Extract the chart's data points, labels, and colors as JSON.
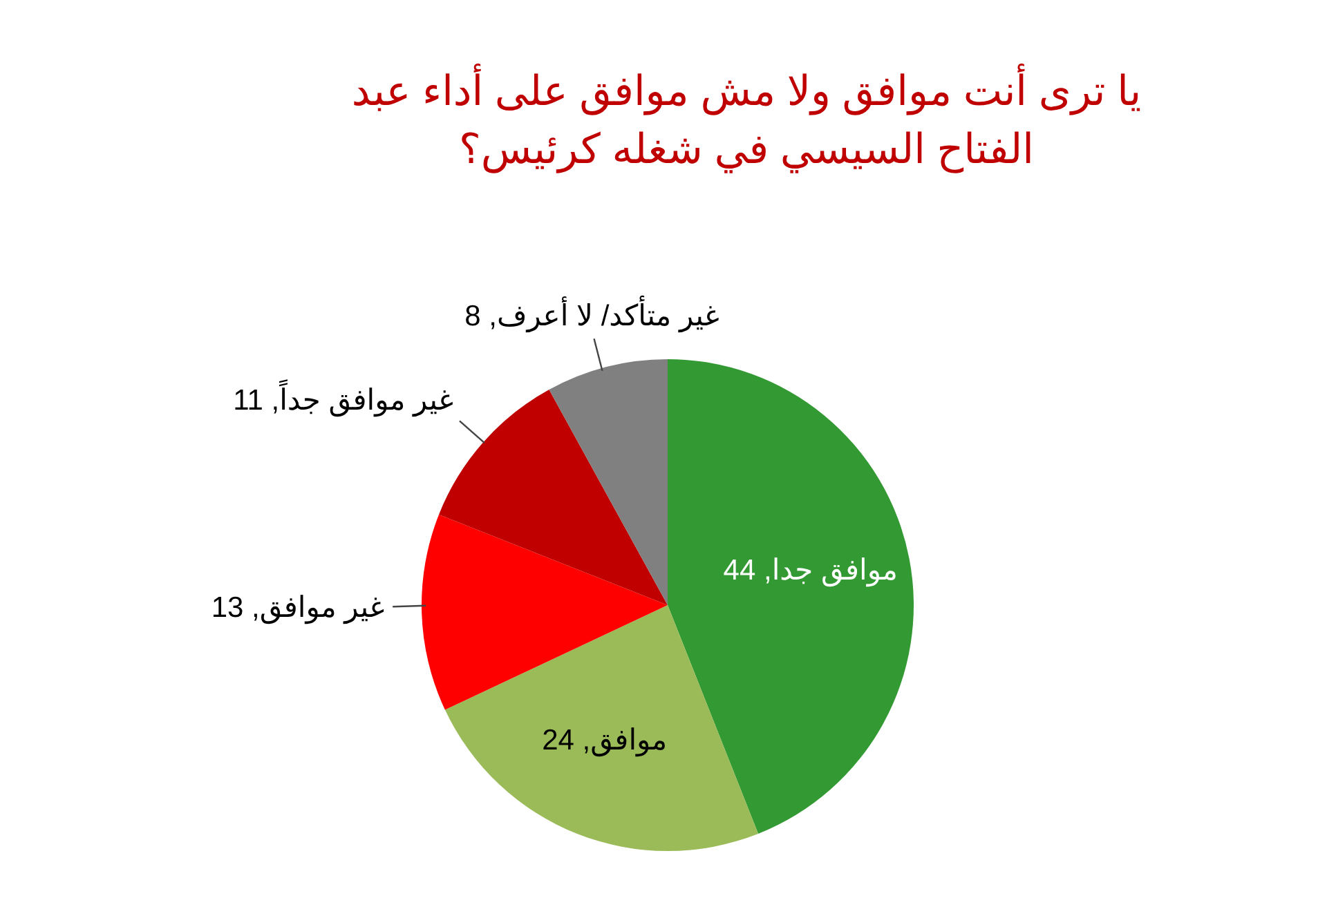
{
  "chart_data": {
    "type": "pie",
    "title": "يا ترى أنت موافق ولا مش موافق على أداء عبد الفتاح السيسي في شغله كرئيس؟",
    "categories": [
      "موافق جدا",
      "موافق",
      "غير موافق",
      "غير موافق جداً",
      "غير متأكد/ لا أعرف"
    ],
    "values": [
      44,
      24,
      13,
      11,
      8
    ],
    "value_labels": [
      ", 44",
      ", 24",
      ", 13",
      ", 11",
      ", 8"
    ],
    "colors": [
      "#339933",
      "#9bbb59",
      "#ff0000",
      "#c00000",
      "#808080"
    ]
  }
}
